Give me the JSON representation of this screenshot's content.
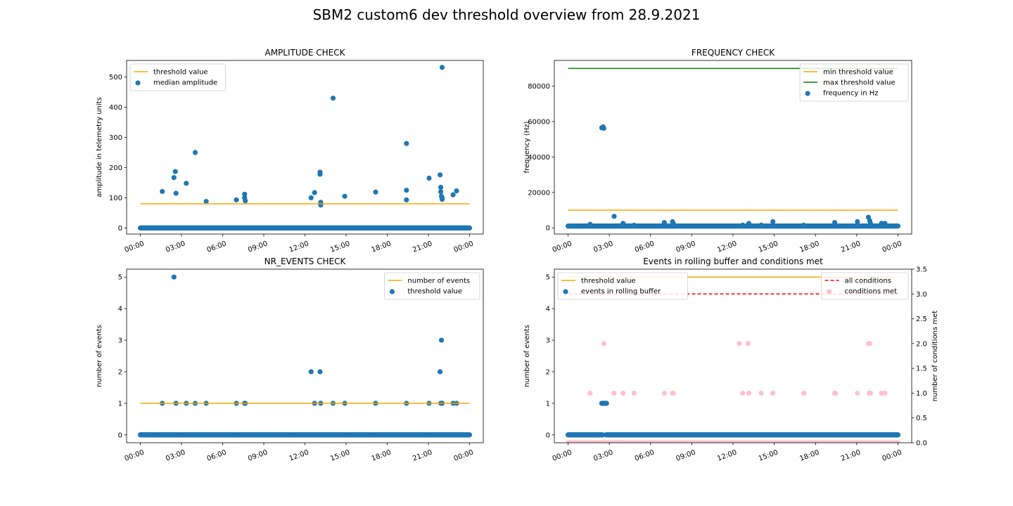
{
  "figure": {
    "suptitle": "SBM2 custom6 dev threshold overview from 28.9.2021"
  },
  "colors": {
    "blue": "#1f77b4",
    "orange": "#ffa500",
    "green": "#008000",
    "red": "#ff0000",
    "pink": "#ffc0cb"
  },
  "chart_data": [
    {
      "id": "amplitude",
      "type": "scatter",
      "title": "AMPLITUDE CHECK",
      "xlabel": "",
      "ylabel": "amplitude in telemetry units",
      "xlim": [
        -1,
        25
      ],
      "ylim": [
        -20,
        555
      ],
      "xticks": [
        0,
        3,
        6,
        9,
        12,
        15,
        18,
        21,
        24
      ],
      "xticklabels": [
        "00:00",
        "03:00",
        "06:00",
        "09:00",
        "12:00",
        "15:00",
        "18:00",
        "21:00",
        "00:00"
      ],
      "yticks": [
        0,
        100,
        200,
        300,
        400,
        500
      ],
      "legend": {
        "position": "upper left",
        "entries": [
          "threshold value",
          "median amplitude"
        ]
      },
      "lines": [
        {
          "name": "threshold value",
          "color": "orange",
          "style": "solid",
          "points": [
            [
              0,
              80
            ],
            [
              24,
              80
            ]
          ]
        }
      ],
      "scatter": [
        {
          "name": "median amplitude",
          "color": "blue",
          "baseline": {
            "y": 0,
            "x_from": 0,
            "x_to": 24
          },
          "points": [
            [
              1.6,
              121
            ],
            [
              2.45,
              167
            ],
            [
              2.55,
              187
            ],
            [
              2.6,
              115
            ],
            [
              3.35,
              148
            ],
            [
              4.0,
              250
            ],
            [
              4.8,
              88
            ],
            [
              7.0,
              93
            ],
            [
              7.6,
              112
            ],
            [
              7.6,
              100
            ],
            [
              7.65,
              90
            ],
            [
              12.45,
              100
            ],
            [
              12.7,
              117
            ],
            [
              13.1,
              185
            ],
            [
              13.1,
              178
            ],
            [
              13.15,
              85
            ],
            [
              13.15,
              76
            ],
            [
              14.05,
              430
            ],
            [
              14.9,
              105
            ],
            [
              17.15,
              119
            ],
            [
              19.4,
              280
            ],
            [
              19.4,
              125
            ],
            [
              19.4,
              93
            ],
            [
              21.05,
              165
            ],
            [
              21.85,
              176
            ],
            [
              21.9,
              135
            ],
            [
              21.9,
              120
            ],
            [
              21.95,
              105
            ],
            [
              22.0,
              100
            ],
            [
              22.0,
              95
            ],
            [
              22.0,
              532
            ],
            [
              22.8,
              110
            ],
            [
              23.05,
              123
            ]
          ]
        }
      ]
    },
    {
      "id": "frequency",
      "type": "scatter",
      "title": "FREQUENCY CHECK",
      "xlabel": "",
      "ylabel": "frequency (Hz)",
      "xlim": [
        -1,
        25
      ],
      "ylim": [
        -3500,
        94500
      ],
      "xticks": [
        0,
        3,
        6,
        9,
        12,
        15,
        18,
        21,
        24
      ],
      "xticklabels": [
        "00:00",
        "03:00",
        "06:00",
        "09:00",
        "12:00",
        "15:00",
        "18:00",
        "21:00",
        "00:00"
      ],
      "yticks": [
        0,
        20000,
        40000,
        60000,
        80000
      ],
      "legend": {
        "position": "upper right",
        "entries": [
          "min threshold value",
          "max threshold value",
          "frequency in Hz"
        ]
      },
      "lines": [
        {
          "name": "min threshold value",
          "color": "orange",
          "style": "solid",
          "points": [
            [
              0,
              10000
            ],
            [
              24,
              10000
            ]
          ]
        },
        {
          "name": "max threshold value",
          "color": "green",
          "style": "solid",
          "points": [
            [
              0,
              90000
            ],
            [
              24,
              90000
            ]
          ]
        }
      ],
      "scatter": [
        {
          "name": "frequency in Hz",
          "color": "blue",
          "baseline": {
            "y": 1000,
            "x_from": 0,
            "x_to": 24
          },
          "points": [
            [
              1.6,
              2000
            ],
            [
              2.45,
              56500
            ],
            [
              2.55,
              57000
            ],
            [
              2.6,
              56200
            ],
            [
              3.35,
              6500
            ],
            [
              4.0,
              2500
            ],
            [
              4.8,
              1500
            ],
            [
              7.0,
              3000
            ],
            [
              7.6,
              3500
            ],
            [
              7.65,
              2500
            ],
            [
              12.7,
              1500
            ],
            [
              13.15,
              2500
            ],
            [
              14.05,
              1500
            ],
            [
              14.9,
              3500
            ],
            [
              17.15,
              1500
            ],
            [
              19.4,
              3000
            ],
            [
              21.05,
              3500
            ],
            [
              21.85,
              6000
            ],
            [
              21.95,
              4000
            ],
            [
              22.0,
              2500
            ],
            [
              22.8,
              2500
            ],
            [
              23.05,
              2500
            ]
          ]
        }
      ]
    },
    {
      "id": "nr_events",
      "type": "scatter",
      "title": "NR_EVENTS CHECK",
      "xlabel": "",
      "ylabel": "number of events",
      "xlim": [
        -1,
        25
      ],
      "ylim": [
        -0.25,
        5.25
      ],
      "xticks": [
        0,
        3,
        6,
        9,
        12,
        15,
        18,
        21,
        24
      ],
      "xticklabels": [
        "00:00",
        "03:00",
        "06:00",
        "09:00",
        "12:00",
        "15:00",
        "18:00",
        "21:00",
        "00:00"
      ],
      "yticks": [
        0,
        1,
        2,
        3,
        4,
        5
      ],
      "legend": {
        "position": "upper right",
        "entries": [
          "number of events",
          "threshold value"
        ]
      },
      "lines": [
        {
          "name": "number of events",
          "color": "orange",
          "style": "solid",
          "points": [
            [
              0,
              1
            ],
            [
              24,
              1
            ]
          ]
        }
      ],
      "scatter": [
        {
          "name": "threshold value",
          "color": "blue",
          "baseline": {
            "y": 0,
            "x_from": 0,
            "x_to": 24
          },
          "points": [
            [
              1.6,
              1
            ],
            [
              2.45,
              5
            ],
            [
              2.6,
              1
            ],
            [
              3.35,
              1
            ],
            [
              4.0,
              1
            ],
            [
              4.8,
              1
            ],
            [
              7.0,
              1
            ],
            [
              7.6,
              1
            ],
            [
              7.65,
              1
            ],
            [
              12.45,
              2
            ],
            [
              12.7,
              1
            ],
            [
              13.1,
              2
            ],
            [
              13.15,
              1
            ],
            [
              14.05,
              1
            ],
            [
              14.9,
              1
            ],
            [
              17.15,
              1
            ],
            [
              19.4,
              1
            ],
            [
              21.05,
              1
            ],
            [
              21.85,
              2
            ],
            [
              21.95,
              3
            ],
            [
              21.9,
              1
            ],
            [
              22.0,
              1
            ],
            [
              22.8,
              1
            ],
            [
              23.05,
              1
            ]
          ]
        }
      ]
    },
    {
      "id": "rolling",
      "type": "scatter",
      "title": "Events in rolling buffer and conditions met",
      "xlabel": "",
      "ylabel": "number of events",
      "ylabel_right": "number of conditions met",
      "xlim": [
        -1,
        25
      ],
      "ylim": [
        -0.25,
        5.25
      ],
      "ylim_right": [
        0,
        3.5
      ],
      "xticks": [
        0,
        3,
        6,
        9,
        12,
        15,
        18,
        21,
        24
      ],
      "xticklabels": [
        "00:00",
        "03:00",
        "06:00",
        "09:00",
        "12:00",
        "15:00",
        "18:00",
        "21:00",
        "00:00"
      ],
      "yticks": [
        0,
        1,
        2,
        3,
        4,
        5
      ],
      "yticks_right": [
        0.0,
        0.5,
        1.0,
        1.5,
        2.0,
        2.5,
        3.0,
        3.5
      ],
      "yticklabels_right": [
        "0.0",
        "0.5",
        "1.0",
        "1.5",
        "2.0",
        "2.5",
        "3.0",
        "3.5"
      ],
      "legend": {
        "position": "upper left",
        "entries": [
          "threshold value",
          "events in rolling buffer"
        ]
      },
      "legend_right": {
        "position": "upper right",
        "entries": [
          "all conditions",
          "conditions met"
        ]
      },
      "lines": [
        {
          "name": "threshold value",
          "color": "orange",
          "style": "solid",
          "axis": "left",
          "points": [
            [
              0,
              5
            ],
            [
              24,
              5
            ]
          ]
        },
        {
          "name": "all conditions",
          "color": "red",
          "style": "dashed",
          "axis": "right",
          "points": [
            [
              0,
              3
            ],
            [
              24,
              3
            ]
          ]
        }
      ],
      "scatter": [
        {
          "name": "events in rolling buffer",
          "color": "blue",
          "axis": "left",
          "baseline": {
            "y": 0,
            "x_from": 0,
            "x_to": 24,
            "gap": [
              2.55,
              2.75
            ]
          },
          "points": [
            [
              2.45,
              1
            ],
            [
              2.5,
              1
            ],
            [
              2.55,
              1
            ],
            [
              2.6,
              1
            ],
            [
              2.65,
              1
            ],
            [
              2.7,
              1
            ],
            [
              2.75,
              1
            ],
            [
              2.8,
              1
            ]
          ]
        },
        {
          "name": "conditions met",
          "color": "pink",
          "axis": "right",
          "baseline": {
            "y": 0,
            "x_from": 0,
            "x_to": 24
          },
          "points": [
            [
              1.6,
              1
            ],
            [
              2.6,
              3
            ],
            [
              2.6,
              2
            ],
            [
              3.35,
              1
            ],
            [
              4.0,
              1
            ],
            [
              4.8,
              1
            ],
            [
              7.0,
              1
            ],
            [
              7.6,
              1
            ],
            [
              7.65,
              1
            ],
            [
              12.45,
              2
            ],
            [
              12.7,
              1
            ],
            [
              13.1,
              2
            ],
            [
              13.15,
              1
            ],
            [
              14.05,
              1
            ],
            [
              14.9,
              1
            ],
            [
              17.15,
              1
            ],
            [
              19.4,
              1
            ],
            [
              19.45,
              1
            ],
            [
              21.05,
              1
            ],
            [
              21.85,
              2
            ],
            [
              21.95,
              2
            ],
            [
              21.9,
              1
            ],
            [
              22.0,
              1
            ],
            [
              22.8,
              1
            ],
            [
              23.05,
              1
            ]
          ]
        }
      ]
    }
  ]
}
